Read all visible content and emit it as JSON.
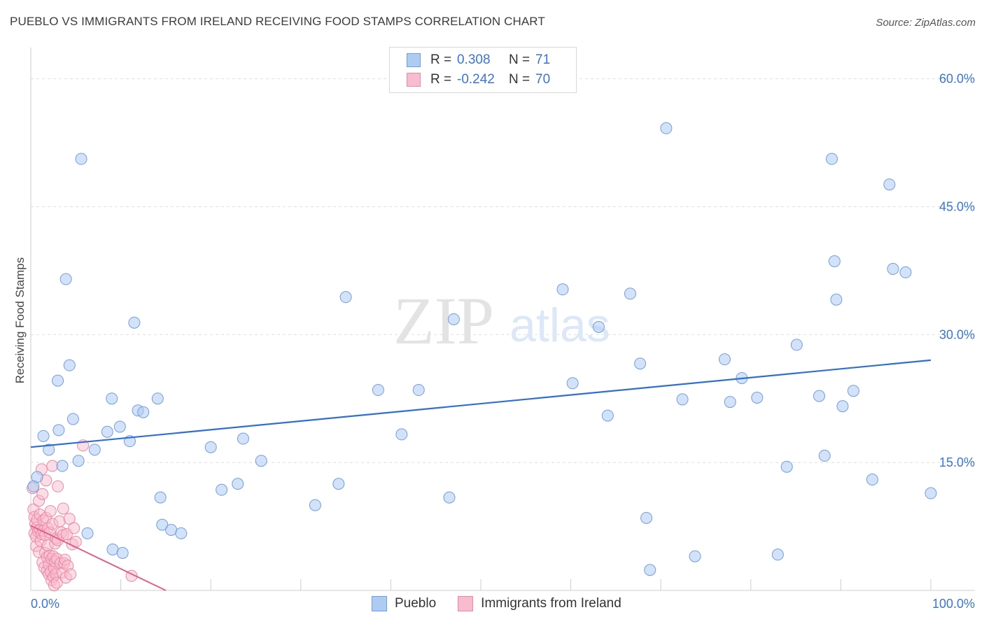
{
  "title": "PUEBLO VS IMMIGRANTS FROM IRELAND RECEIVING FOOD STAMPS CORRELATION CHART",
  "source": "Source: ZipAtlas.com",
  "watermark": {
    "zip": "ZIP",
    "atlas": "atlas"
  },
  "legend": {
    "series1": {
      "r_label": "R =",
      "r_value": "0.308",
      "n_label": "N =",
      "n_value": "71"
    },
    "series2": {
      "r_label": "R =",
      "r_value": "-0.242",
      "n_label": "N =",
      "n_value": "70"
    }
  },
  "colors": {
    "pueblo_fill": "#aecbf2",
    "pueblo_stroke": "#6f9fe0",
    "pueblo_line": "#2f6fcf",
    "ireland_fill": "#f7bccd",
    "ireland_stroke": "#ea89a8",
    "ireland_line": "#e0608a",
    "tick_label": "#3a75d1"
  },
  "chart_data": {
    "type": "scatter",
    "title": "PUEBLO VS IMMIGRANTS FROM IRELAND RECEIVING FOOD STAMPS CORRELATION CHART",
    "xlabel": "",
    "ylabel": "Receiving Food Stamps",
    "xlim": [
      0,
      100
    ],
    "ylim": [
      0,
      63
    ],
    "x_tick_labels": [
      "0.0%",
      "100.0%"
    ],
    "y_ticks": [
      15,
      30,
      45,
      60
    ],
    "y_tick_labels": [
      "15.0%",
      "30.0%",
      "45.0%",
      "60.0%"
    ],
    "series": [
      {
        "name": "Pueblo",
        "r": 0.308,
        "n": 71,
        "trend": {
          "x": [
            0,
            100
          ],
          "y": [
            16.8,
            27.0
          ]
        },
        "points": [
          [
            0.7,
            13.3
          ],
          [
            1.4,
            18.1
          ],
          [
            2.0,
            16.5
          ],
          [
            3.0,
            24.6
          ],
          [
            3.1,
            18.8
          ],
          [
            3.5,
            14.6
          ],
          [
            3.9,
            36.5
          ],
          [
            4.3,
            26.4
          ],
          [
            4.7,
            20.1
          ],
          [
            5.3,
            15.2
          ],
          [
            5.6,
            50.6
          ],
          [
            6.3,
            6.7
          ],
          [
            7.1,
            16.5
          ],
          [
            8.5,
            18.6
          ],
          [
            9.0,
            22.5
          ],
          [
            9.1,
            4.8
          ],
          [
            9.9,
            19.2
          ],
          [
            10.2,
            4.4
          ],
          [
            11.0,
            17.5
          ],
          [
            11.5,
            31.4
          ],
          [
            11.9,
            21.1
          ],
          [
            12.5,
            20.9
          ],
          [
            14.1,
            22.5
          ],
          [
            14.4,
            10.9
          ],
          [
            14.6,
            7.7
          ],
          [
            15.6,
            7.1
          ],
          [
            16.7,
            6.7
          ],
          [
            20.0,
            16.8
          ],
          [
            21.2,
            11.8
          ],
          [
            23.0,
            12.5
          ],
          [
            23.6,
            17.8
          ],
          [
            25.6,
            15.2
          ],
          [
            31.6,
            10.0
          ],
          [
            34.2,
            12.5
          ],
          [
            35.0,
            34.4
          ],
          [
            38.6,
            23.5
          ],
          [
            41.2,
            18.3
          ],
          [
            43.1,
            23.5
          ],
          [
            46.5,
            10.9
          ],
          [
            47.0,
            31.8
          ],
          [
            59.1,
            35.3
          ],
          [
            60.2,
            24.3
          ],
          [
            63.1,
            30.9
          ],
          [
            64.1,
            20.5
          ],
          [
            66.6,
            34.8
          ],
          [
            67.7,
            26.6
          ],
          [
            68.4,
            8.5
          ],
          [
            68.8,
            2.4
          ],
          [
            70.6,
            54.2
          ],
          [
            72.4,
            22.4
          ],
          [
            73.8,
            4.0
          ],
          [
            77.1,
            27.1
          ],
          [
            77.7,
            22.1
          ],
          [
            79.0,
            24.9
          ],
          [
            80.7,
            22.6
          ],
          [
            83.0,
            4.2
          ],
          [
            84.0,
            14.5
          ],
          [
            85.1,
            28.8
          ],
          [
            87.6,
            22.8
          ],
          [
            88.2,
            15.8
          ],
          [
            89.0,
            50.6
          ],
          [
            89.3,
            38.6
          ],
          [
            89.5,
            34.1
          ],
          [
            90.2,
            21.6
          ],
          [
            91.4,
            23.4
          ],
          [
            93.5,
            13.0
          ],
          [
            95.4,
            47.6
          ],
          [
            95.8,
            37.7
          ],
          [
            97.2,
            37.3
          ],
          [
            100.0,
            11.4
          ],
          [
            0.3,
            12.2
          ]
        ]
      },
      {
        "name": "Immigrants from Ireland",
        "r": -0.242,
        "n": 70,
        "trend": {
          "x": [
            0.0,
            15.0
          ],
          "y": [
            7.6,
            0.0
          ]
        },
        "points": [
          [
            0.2,
            12.0
          ],
          [
            0.3,
            9.5
          ],
          [
            0.4,
            8.6
          ],
          [
            0.4,
            6.7
          ],
          [
            0.5,
            7.8
          ],
          [
            0.6,
            6.3
          ],
          [
            0.6,
            5.2
          ],
          [
            0.7,
            7.4
          ],
          [
            0.7,
            8.3
          ],
          [
            0.8,
            6.9
          ],
          [
            0.9,
            10.5
          ],
          [
            0.9,
            4.5
          ],
          [
            1.0,
            8.9
          ],
          [
            1.0,
            7.1
          ],
          [
            1.1,
            5.8
          ],
          [
            1.2,
            14.2
          ],
          [
            1.2,
            6.6
          ],
          [
            1.3,
            11.3
          ],
          [
            1.3,
            3.3
          ],
          [
            1.4,
            8.2
          ],
          [
            1.4,
            7.0
          ],
          [
            1.5,
            2.7
          ],
          [
            1.6,
            6.5
          ],
          [
            1.6,
            4.4
          ],
          [
            1.7,
            12.9
          ],
          [
            1.7,
            8.5
          ],
          [
            1.8,
            3.9
          ],
          [
            1.8,
            2.3
          ],
          [
            1.9,
            7.3
          ],
          [
            1.9,
            5.3
          ],
          [
            2.0,
            3.0
          ],
          [
            2.0,
            1.9
          ],
          [
            2.1,
            6.8
          ],
          [
            2.1,
            4.1
          ],
          [
            2.2,
            9.3
          ],
          [
            2.2,
            2.2
          ],
          [
            2.3,
            3.7
          ],
          [
            2.3,
            1.2
          ],
          [
            2.4,
            14.6
          ],
          [
            2.4,
            7.8
          ],
          [
            2.5,
            4.0
          ],
          [
            2.5,
            1.6
          ],
          [
            2.6,
            2.6
          ],
          [
            2.6,
            0.6
          ],
          [
            2.7,
            5.5
          ],
          [
            2.7,
            3.4
          ],
          [
            2.8,
            6.1
          ],
          [
            2.8,
            1.9
          ],
          [
            2.9,
            3.7
          ],
          [
            2.9,
            0.9
          ],
          [
            3.0,
            12.2
          ],
          [
            3.0,
            5.9
          ],
          [
            3.2,
            8.1
          ],
          [
            3.3,
            3.2
          ],
          [
            3.4,
            6.8
          ],
          [
            3.5,
            2.1
          ],
          [
            3.6,
            9.6
          ],
          [
            3.6,
            6.5
          ],
          [
            3.7,
            3.2
          ],
          [
            3.8,
            3.6
          ],
          [
            3.9,
            1.5
          ],
          [
            4.0,
            6.6
          ],
          [
            4.1,
            2.9
          ],
          [
            4.3,
            8.4
          ],
          [
            4.4,
            1.9
          ],
          [
            4.6,
            5.4
          ],
          [
            4.8,
            7.3
          ],
          [
            5.0,
            5.7
          ],
          [
            5.8,
            17.0
          ],
          [
            11.2,
            1.7
          ]
        ]
      }
    ]
  }
}
